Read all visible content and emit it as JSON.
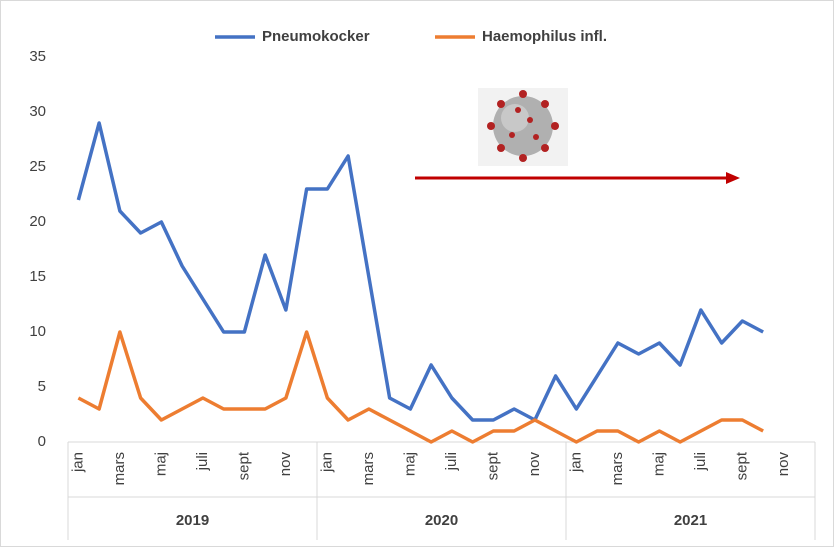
{
  "chart_data": {
    "type": "line",
    "categories": [
      "jan",
      null,
      "mars",
      null,
      "maj",
      null,
      "juli",
      null,
      "sept",
      null,
      "nov",
      null,
      "jan",
      null,
      "mars",
      null,
      "maj",
      null,
      "juli",
      null,
      "sept",
      null,
      "nov",
      null,
      "jan",
      null,
      "mars",
      null,
      "maj",
      null,
      "juli",
      null,
      "sept",
      null,
      "nov",
      null
    ],
    "groups": [
      "2019",
      "2020",
      "2021"
    ],
    "series": [
      {
        "name": "Pneumokocker",
        "color": "#4472c4",
        "values": [
          22,
          29,
          21,
          19,
          20,
          16,
          13,
          10,
          10,
          17,
          12,
          23,
          23,
          26,
          15,
          4,
          3,
          7,
          4,
          2,
          2,
          3,
          2,
          6,
          3,
          6,
          9,
          8,
          9,
          7,
          12,
          9,
          11,
          10,
          null,
          null
        ]
      },
      {
        "name": "Haemophilus infl.",
        "color": "#ed7d31",
        "values": [
          4,
          3,
          10,
          4,
          2,
          3,
          4,
          3,
          3,
          3,
          4,
          10,
          4,
          2,
          3,
          2,
          1,
          0,
          1,
          0,
          1,
          1,
          2,
          1,
          0,
          1,
          1,
          0,
          1,
          0,
          1,
          2,
          2,
          1,
          null,
          null
        ]
      }
    ],
    "ylim": [
      0,
      35
    ],
    "yticks": [
      0,
      5,
      10,
      15,
      20,
      25,
      30,
      35
    ],
    "grid": false,
    "legend": "top"
  }
}
